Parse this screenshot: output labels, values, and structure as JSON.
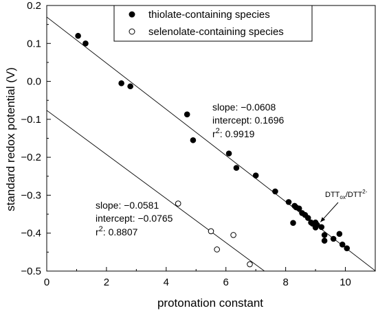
{
  "chart_data": {
    "type": "scatter",
    "xlabel": "protonation constant",
    "ylabel": "standard redox potential (V)",
    "xlim": [
      0,
      11
    ],
    "ylim": [
      -0.5,
      0.2
    ],
    "xticks": [
      "0",
      "2",
      "4",
      "6",
      "8",
      "10"
    ],
    "yticks": [
      "0.2",
      "0.1",
      "0.0",
      "-0.1",
      "-0.2",
      "-0.3",
      "-0.4",
      "-0.5"
    ],
    "grid": false,
    "legend_position": "top-center",
    "series": [
      {
        "name": "thiolate-containing species",
        "marker": "filled-circle",
        "color": "#000000",
        "points": [
          [
            1.05,
            0.12
          ],
          [
            1.3,
            0.1
          ],
          [
            2.5,
            -0.005
          ],
          [
            2.8,
            -0.013
          ],
          [
            4.7,
            -0.087
          ],
          [
            4.9,
            -0.155
          ],
          [
            6.1,
            -0.19
          ],
          [
            6.35,
            -0.228
          ],
          [
            7.0,
            -0.248
          ],
          [
            7.65,
            -0.29
          ],
          [
            8.1,
            -0.318
          ],
          [
            8.25,
            -0.373
          ],
          [
            8.3,
            -0.328
          ],
          [
            8.35,
            -0.332
          ],
          [
            8.45,
            -0.335
          ],
          [
            8.55,
            -0.347
          ],
          [
            8.65,
            -0.352
          ],
          [
            8.75,
            -0.36
          ],
          [
            8.85,
            -0.372
          ],
          [
            8.9,
            -0.375
          ],
          [
            9.0,
            -0.372
          ],
          [
            9.0,
            -0.385
          ],
          [
            9.05,
            -0.378
          ],
          [
            9.2,
            -0.384
          ],
          [
            9.3,
            -0.405
          ],
          [
            9.3,
            -0.42
          ],
          [
            9.6,
            -0.415
          ],
          [
            9.8,
            -0.402
          ],
          [
            9.9,
            -0.43
          ],
          [
            10.05,
            -0.44
          ]
        ],
        "fit": {
          "slope": -0.0608,
          "intercept": 0.1696,
          "x_range": [
            0,
            11
          ],
          "annotation": [
            "slope: −0.0608",
            "intercept: 0.1696",
            "r",
            "2",
            ": 0.9919"
          ]
        }
      },
      {
        "name": "selenolate-containing species",
        "marker": "open-circle",
        "color": "#000000",
        "points": [
          [
            4.4,
            -0.322
          ],
          [
            5.5,
            -0.395
          ],
          [
            5.7,
            -0.443
          ],
          [
            6.25,
            -0.405
          ],
          [
            6.8,
            -0.482
          ]
        ],
        "fit": {
          "slope": -0.0581,
          "intercept": -0.0765,
          "x_range": [
            0,
            7.3
          ],
          "annotation": [
            "slope: −0.0581",
            "intercept: −0.0765",
            "r",
            "2",
            ": 0.8807"
          ]
        }
      }
    ],
    "callout": {
      "text": [
        "DTT",
        "ox",
        "/DTT",
        "2-"
      ],
      "points_to": [
        9.05,
        -0.378
      ]
    }
  }
}
